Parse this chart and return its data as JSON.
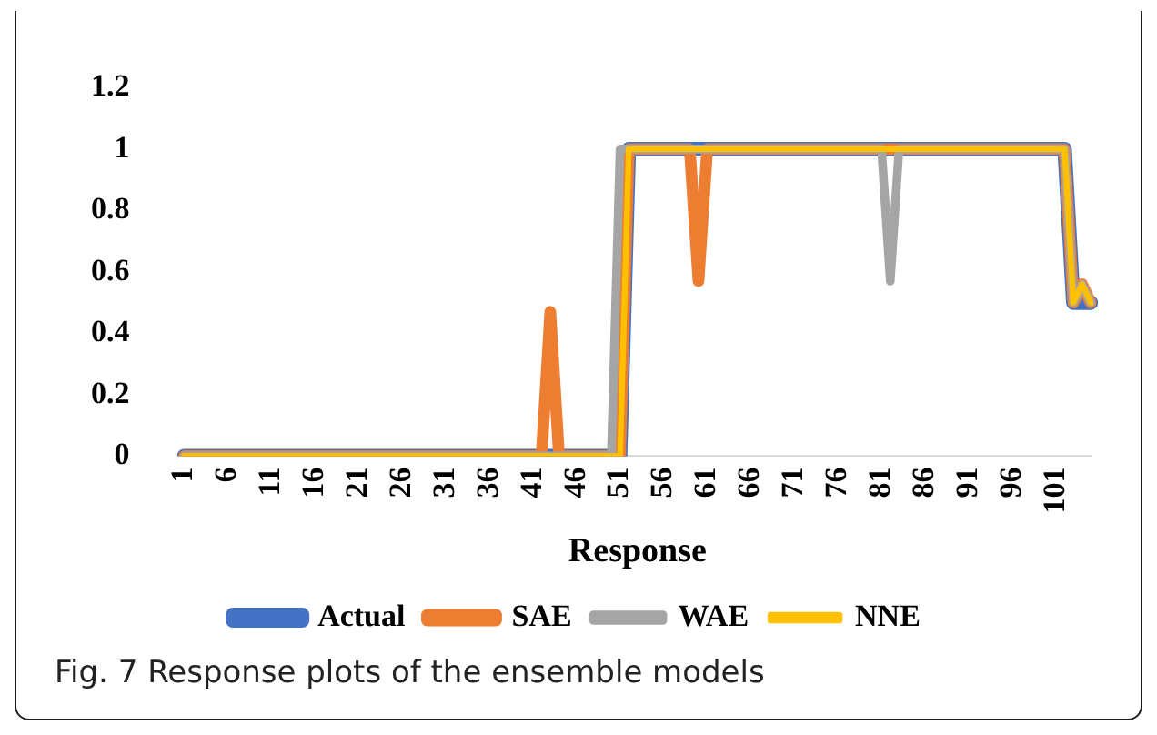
{
  "chart_data": {
    "type": "line",
    "xlabel": "Response",
    "categories": [
      "1",
      null,
      null,
      null,
      null,
      "6",
      null,
      null,
      null,
      null,
      "11",
      null,
      null,
      null,
      null,
      "16",
      null,
      null,
      null,
      null,
      "21",
      null,
      null,
      null,
      null,
      "26",
      null,
      null,
      null,
      null,
      "31",
      null,
      null,
      null,
      null,
      "36",
      null,
      null,
      null,
      null,
      "41",
      null,
      null,
      null,
      null,
      "46",
      null,
      null,
      null,
      null,
      "51",
      null,
      null,
      null,
      null,
      "56",
      null,
      null,
      null,
      null,
      "61",
      null,
      null,
      null,
      null,
      "66",
      null,
      null,
      null,
      null,
      "71",
      null,
      null,
      null,
      null,
      "76",
      null,
      null,
      null,
      null,
      "81",
      null,
      null,
      null,
      null,
      "86",
      null,
      null,
      null,
      null,
      "91",
      null,
      null,
      null,
      null,
      "96",
      null,
      null,
      null,
      null,
      "101",
      null,
      null,
      null,
      null
    ],
    "series": [
      {
        "name": "Actual",
        "color": "#4472c4",
        "values": [
          0,
          0,
          0,
          0,
          0,
          0,
          0,
          0,
          0,
          0,
          0,
          0,
          0,
          0,
          0,
          0,
          0,
          0,
          0,
          0,
          0,
          0,
          0,
          0,
          0,
          0,
          0,
          0,
          0,
          0,
          0,
          0,
          0,
          0,
          0,
          0,
          0,
          0,
          0,
          0,
          0,
          0,
          0,
          0,
          0,
          0,
          0,
          0,
          0,
          0,
          0,
          1,
          1,
          1,
          1,
          1,
          1,
          1,
          1,
          1,
          1,
          1,
          1,
          1,
          1,
          1,
          1,
          1,
          1,
          1,
          1,
          1,
          1,
          1,
          1,
          1,
          1,
          1,
          1,
          1,
          1,
          1,
          1,
          1,
          1,
          1,
          1,
          1,
          1,
          1,
          1,
          1,
          1,
          1,
          1,
          1,
          1,
          1,
          1,
          1,
          1,
          1,
          0.5,
          0.5,
          0.5
        ]
      },
      {
        "name": "SAE",
        "color": "#ed7d31",
        "values": [
          0,
          0,
          0,
          0,
          0,
          0,
          0,
          0,
          0,
          0,
          0,
          0,
          0,
          0,
          0,
          0,
          0,
          0,
          0,
          0,
          0,
          0,
          0,
          0,
          0,
          0,
          0,
          0,
          0,
          0,
          0,
          0,
          0,
          0,
          0,
          0,
          0,
          0,
          0,
          0,
          0,
          0,
          0.47,
          0,
          0,
          0,
          0,
          0,
          0,
          0,
          0,
          1,
          1,
          1,
          1,
          1,
          1,
          1,
          1,
          0.57,
          1,
          1,
          1,
          1,
          1,
          1,
          1,
          1,
          1,
          1,
          1,
          1,
          1,
          1,
          1,
          1,
          1,
          1,
          1,
          1,
          1,
          1,
          1,
          1,
          1,
          1,
          1,
          1,
          1,
          1,
          1,
          1,
          1,
          1,
          1,
          1,
          1,
          1,
          1,
          1,
          1,
          1,
          0.5,
          0.56,
          0.5
        ]
      },
      {
        "name": "WAE",
        "color": "#a5a5a5",
        "values": [
          0,
          0,
          0,
          0,
          0,
          0,
          0,
          0,
          0,
          0,
          0,
          0,
          0,
          0,
          0,
          0,
          0,
          0,
          0,
          0,
          0,
          0,
          0,
          0,
          0,
          0,
          0,
          0,
          0,
          0,
          0,
          0,
          0,
          0,
          0,
          0,
          0,
          0,
          0,
          0,
          0,
          0,
          0,
          0,
          0,
          0,
          0,
          0,
          0,
          0,
          1,
          1,
          1,
          1,
          1,
          1,
          1,
          1,
          1,
          1,
          1,
          1,
          1,
          1,
          1,
          1,
          1,
          1,
          1,
          1,
          1,
          1,
          1,
          1,
          1,
          1,
          1,
          1,
          1,
          1,
          1,
          0.57,
          1,
          1,
          1,
          1,
          1,
          1,
          1,
          1,
          1,
          1,
          1,
          1,
          1,
          1,
          1,
          1,
          1,
          1,
          1,
          1,
          0.5,
          0.56,
          0.5
        ]
      },
      {
        "name": "NNE",
        "color": "#ffc000",
        "values": [
          0,
          0,
          0,
          0,
          0,
          0,
          0,
          0,
          0,
          0,
          0,
          0,
          0,
          0,
          0,
          0,
          0,
          0,
          0,
          0,
          0,
          0,
          0,
          0,
          0,
          0,
          0,
          0,
          0,
          0,
          0,
          0,
          0,
          0,
          0,
          0,
          0,
          0,
          0,
          0,
          0,
          0,
          0,
          0,
          0,
          0,
          0,
          0,
          0,
          0,
          0,
          1,
          1,
          1,
          1,
          1,
          1,
          1,
          1,
          1,
          1,
          1,
          1,
          1,
          1,
          1,
          1,
          1,
          1,
          1,
          1,
          1,
          1,
          1,
          1,
          1,
          1,
          1,
          1,
          1,
          1,
          1,
          1,
          1,
          1,
          1,
          1,
          1,
          1,
          1,
          1,
          1,
          1,
          1,
          1,
          1,
          1,
          1,
          1,
          1,
          1,
          1,
          0.5,
          0.56,
          0.5
        ]
      }
    ],
    "ylim": [
      0,
      1.2
    ],
    "yticks": [
      0,
      0.2,
      0.4,
      0.6,
      0.8,
      1,
      1.2
    ],
    "grid": false,
    "legend": "bottom",
    "marker": "none",
    "annotations": [
      "Fig. 7  Response plots of the ensemble models"
    ]
  }
}
